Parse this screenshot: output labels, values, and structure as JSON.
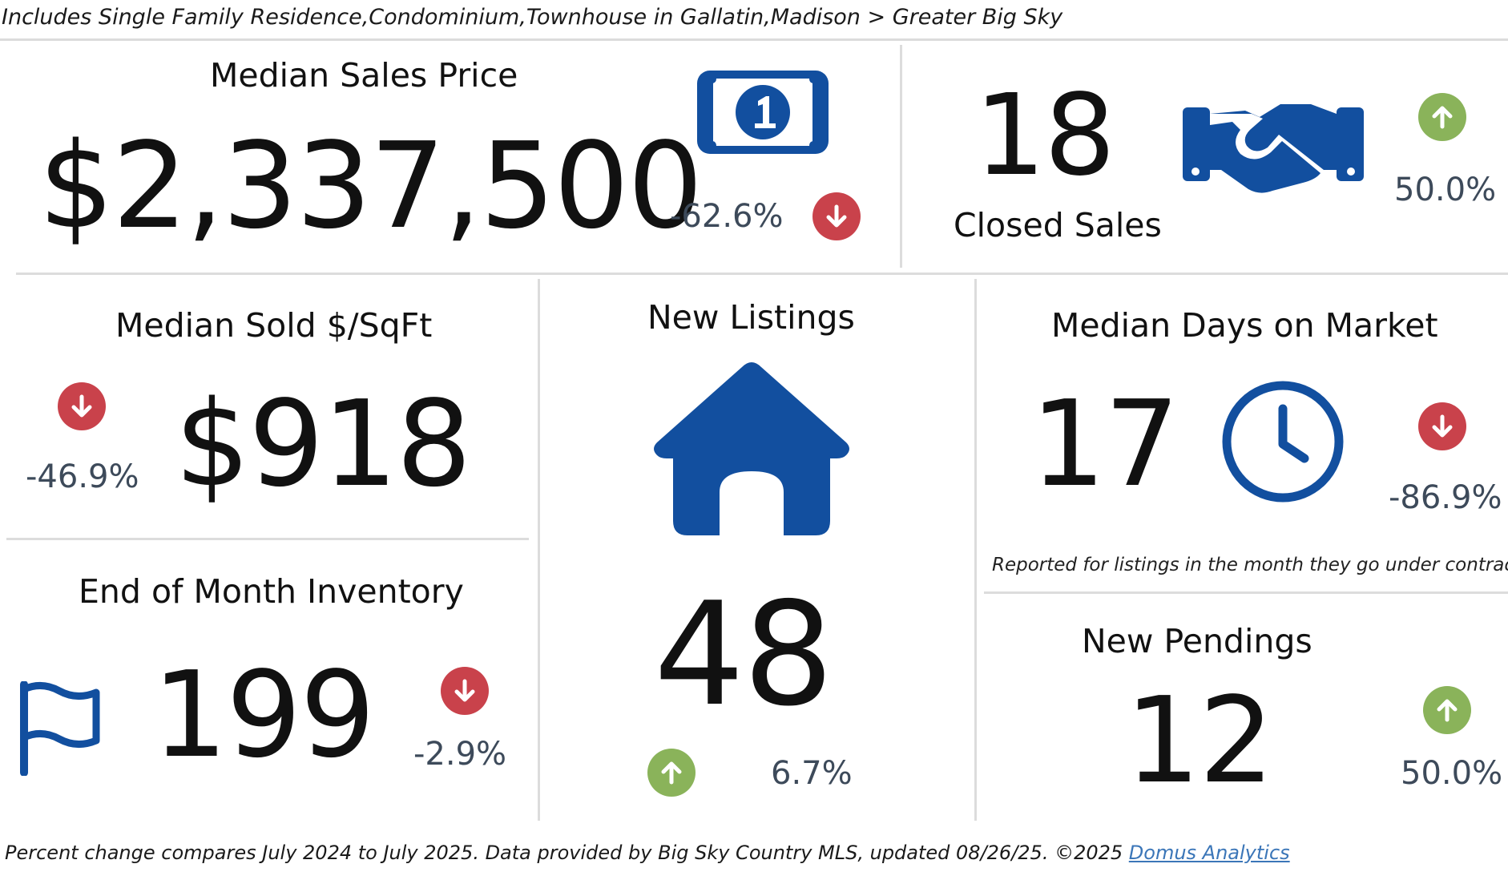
{
  "header": {
    "subtitle": "Includes Single Family Residence,Condominium,Townhouse in Gallatin,Madison > Greater Big Sky"
  },
  "colors": {
    "icon_blue": "#124f9f",
    "down_red": "#c9424b",
    "up_green": "#8ab35a",
    "pct_text": "#3d4a5a",
    "divider": "#dcdcdc"
  },
  "median_sales_price": {
    "title": "Median Sales Price",
    "value": "$2,337,500",
    "change": "-62.6%",
    "direction": "down",
    "icon": "dollar-bill-icon"
  },
  "closed_sales": {
    "title": "Closed Sales",
    "value": "18",
    "change": "50.0%",
    "direction": "up",
    "icon": "handshake-icon"
  },
  "median_sold_sqft": {
    "title": "Median Sold $/SqFt",
    "value": "$918",
    "change": "-46.9%",
    "direction": "down"
  },
  "new_listings": {
    "title": "New Listings",
    "value": "48",
    "change": "6.7%",
    "direction": "up",
    "icon": "house-icon"
  },
  "median_dom": {
    "title": "Median Days on Market",
    "value": "17",
    "change": "-86.9%",
    "direction": "down",
    "icon": "clock-icon",
    "note": "Reported for listings in the month they go under contract."
  },
  "inventory": {
    "title": "End of Month Inventory",
    "value": "199",
    "change": "-2.9%",
    "direction": "down",
    "icon": "flag-icon"
  },
  "new_pendings": {
    "title": "New Pendings",
    "value": "12",
    "change": "50.0%",
    "direction": "up"
  },
  "footer": {
    "text": "Percent change compares July 2024 to July 2025.  Data provided by Big Sky Country MLS, updated 08/26/25. ©2025 ",
    "link": "Domus Analytics"
  }
}
